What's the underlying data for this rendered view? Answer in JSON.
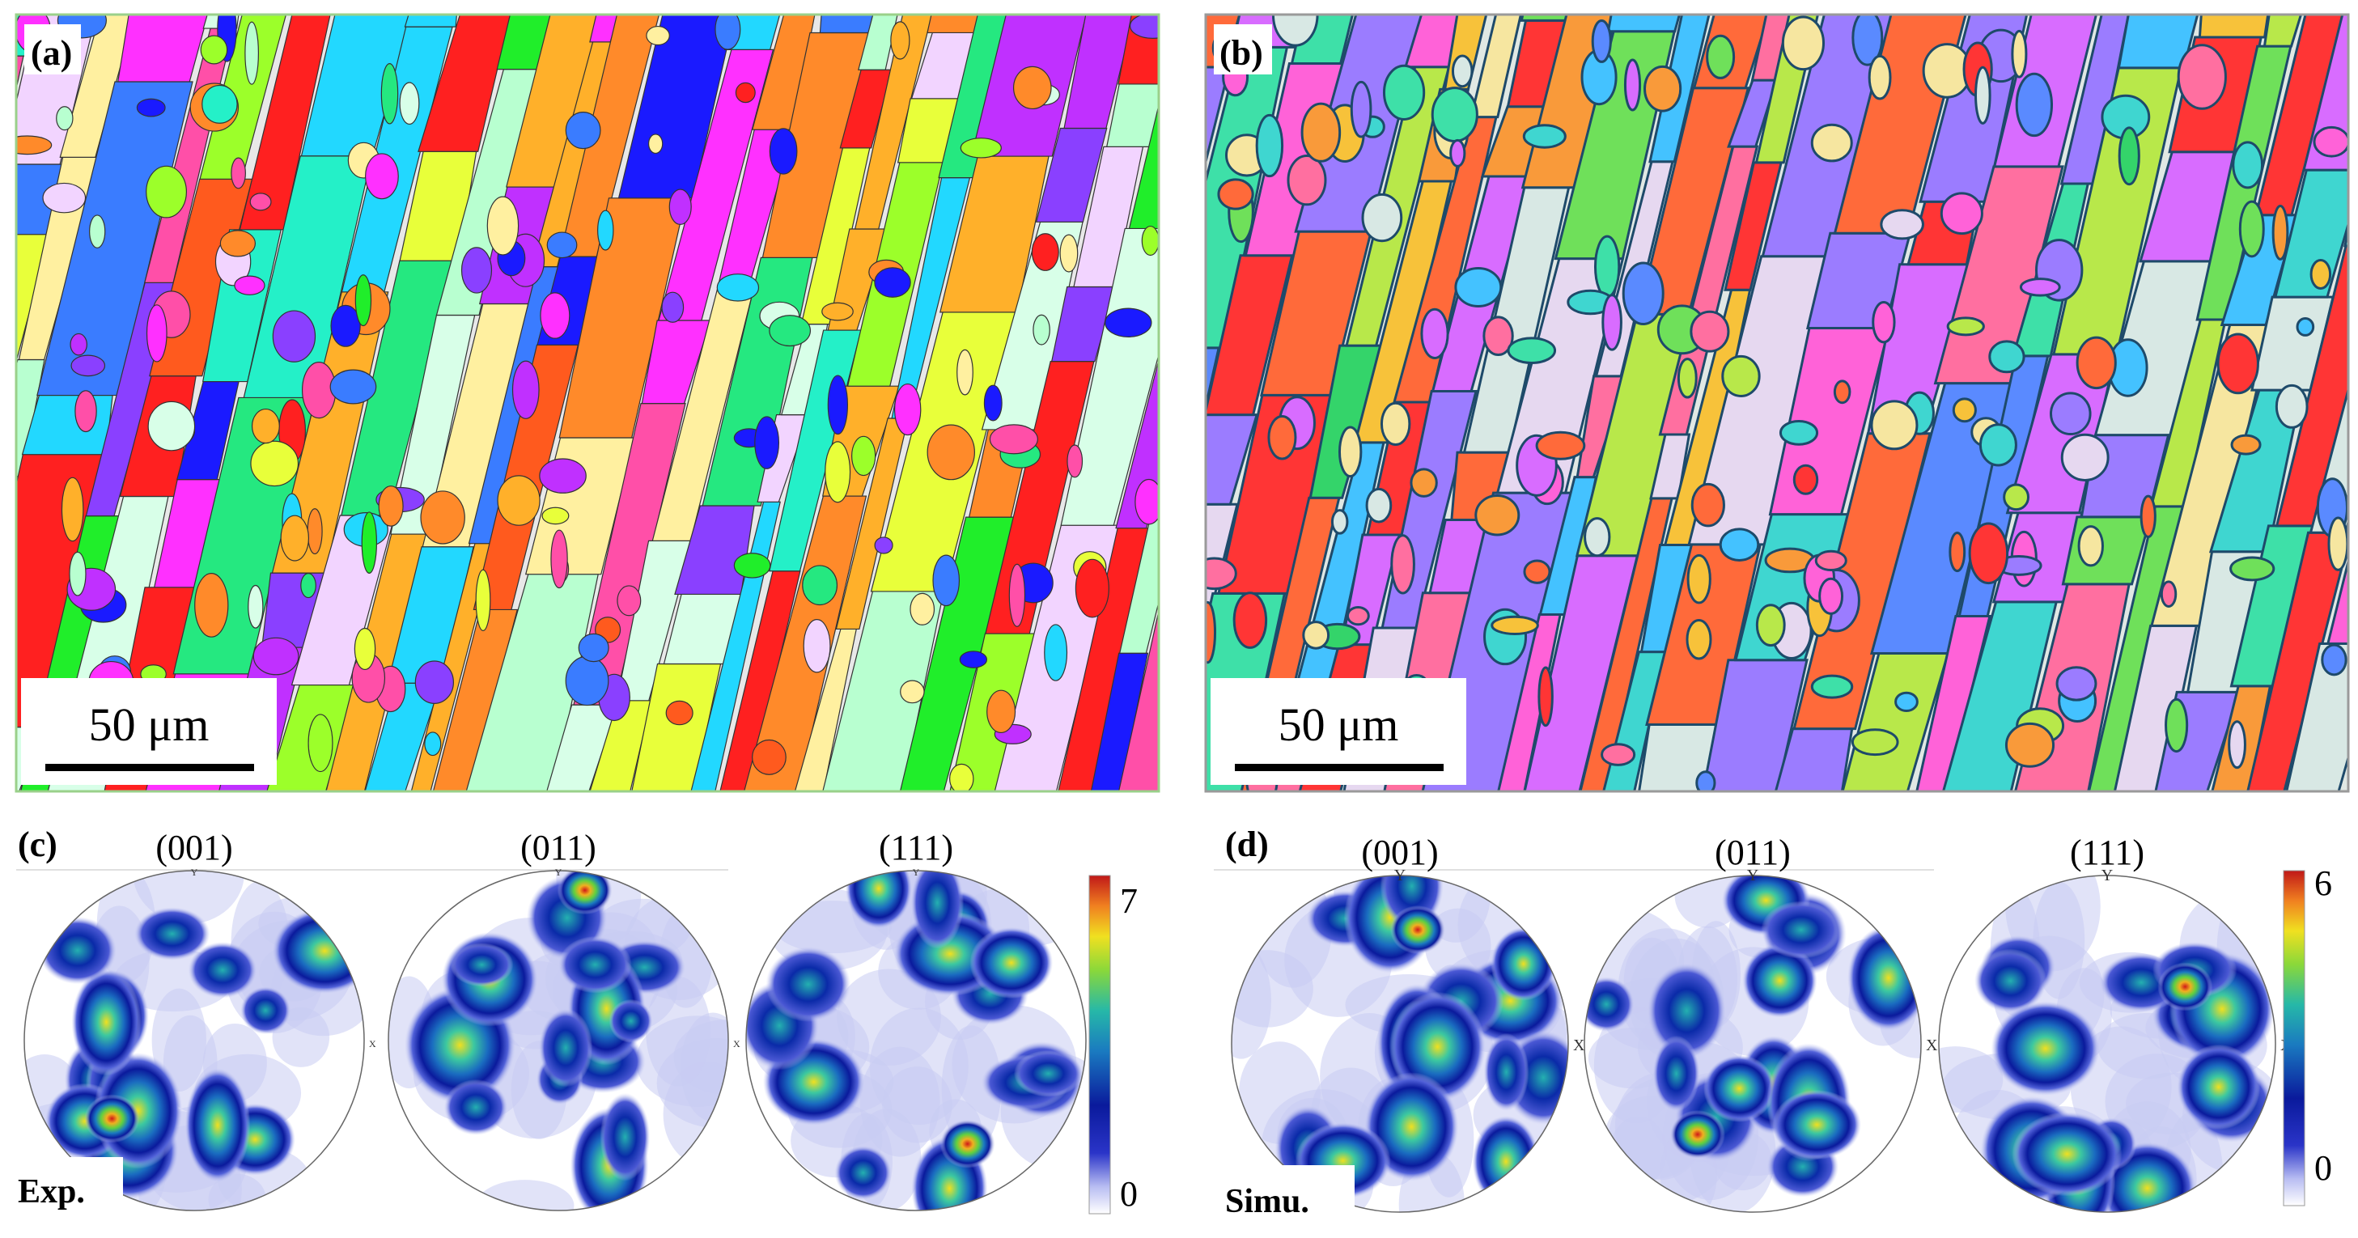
{
  "panels": {
    "a": {
      "label": "(a)",
      "scale_bar": "50 μm"
    },
    "b": {
      "label": "(b)",
      "scale_bar": "50 μm"
    },
    "c": {
      "label": "(c)",
      "tag": "Exp.",
      "colorbar_max": "7",
      "colorbar_min": "0"
    },
    "d": {
      "label": "(d)",
      "tag": "Simu.",
      "colorbar_max": "6",
      "colorbar_min": "0"
    }
  },
  "pole_figures": {
    "titles": [
      "(001)",
      "(011)",
      "(111)"
    ],
    "axis_y": "Y",
    "axis_x": "X"
  },
  "colors": {
    "grain_palette": [
      "#ff2020",
      "#ff5a1e",
      "#ff8a2a",
      "#ffb02a",
      "#e8ff3a",
      "#9cff2a",
      "#20ee2a",
      "#25e880",
      "#24f0c8",
      "#22d8ff",
      "#3a7cff",
      "#1a1aff",
      "#8a40ff",
      "#c030ff",
      "#ff30ff",
      "#ff4fa8",
      "#b8ffd0",
      "#f2d4ff",
      "#d8ffe8",
      "#fff0a0"
    ],
    "sim_palette": [
      "#ff3535",
      "#ff6a3a",
      "#f99a3a",
      "#f7c23a",
      "#b8e84a",
      "#6fe05a",
      "#34d46a",
      "#3ee0a8",
      "#3fd6d0",
      "#44c2ff",
      "#5a8aff",
      "#9b7cff",
      "#d86cff",
      "#ff62d8",
      "#ff6fa0",
      "#d8e8e4",
      "#e6d8f0",
      "#f6e6a0"
    ],
    "boundary_color": "#1e4a6a",
    "colormap": [
      "#ffffff",
      "#b8bdf2",
      "#2a34c8",
      "#0a1a9c",
      "#1a7ac0",
      "#26b8a8",
      "#8ad83a",
      "#f0e020",
      "#f08020",
      "#c01818"
    ]
  }
}
